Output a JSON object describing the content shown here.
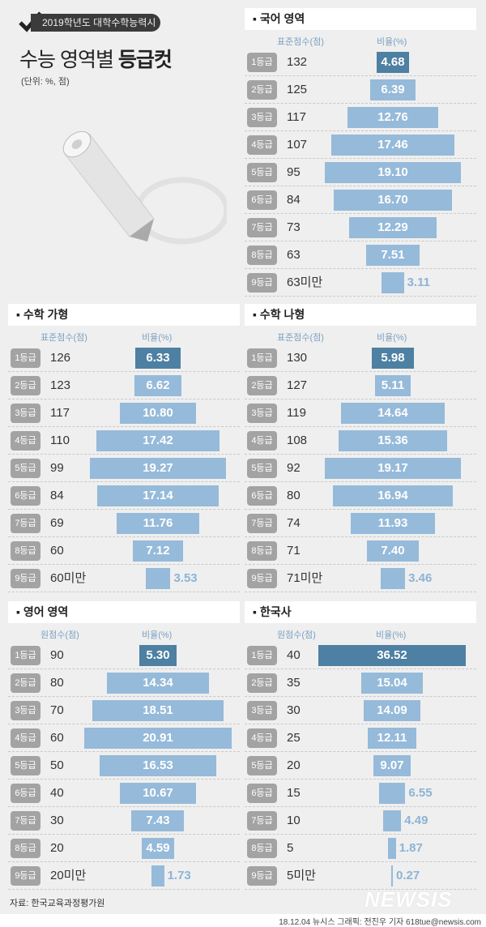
{
  "header": {
    "tag": "2019학년도 대학수학능력시험",
    "title_normal": "수능 영역별",
    "title_bold": "등급컷",
    "unit": "(단위: %, 점)"
  },
  "colors": {
    "grade1_bar": "#4d80a2",
    "bar": "#96bad9",
    "badge": "#a3a3a3",
    "background": "#efefef"
  },
  "footer": {
    "source": "자료: 한국교육과정평가원",
    "logo": "NEWSIS",
    "credit": "18.12.04 뉴시스 그래픽: 전진우 기자 618tue@newsis.com"
  },
  "chart_data": [
    {
      "type": "bar",
      "title": "▪ 국어 영역",
      "xlabel": "표준점수(점)",
      "ylabel": "비율(%)",
      "categories": [
        "1등급",
        "2등급",
        "3등급",
        "4등급",
        "5등급",
        "6등급",
        "7등급",
        "8등급",
        "9등급"
      ],
      "scores": [
        "132",
        "125",
        "117",
        "107",
        "95",
        "84",
        "73",
        "63",
        "63미만"
      ],
      "values": [
        4.68,
        6.39,
        12.76,
        17.46,
        19.1,
        16.7,
        12.29,
        7.51,
        3.11
      ],
      "labels": [
        "4.68",
        "6.39",
        "12.76",
        "17.46",
        "19.10",
        "16.70",
        "12.29",
        "7.51",
        "3.11"
      ]
    },
    {
      "type": "bar",
      "title": "▪ 수학 가형",
      "xlabel": "표준점수(점)",
      "ylabel": "비율(%)",
      "categories": [
        "1등급",
        "2등급",
        "3등급",
        "4등급",
        "5등급",
        "6등급",
        "7등급",
        "8등급",
        "9등급"
      ],
      "scores": [
        "126",
        "123",
        "117",
        "110",
        "99",
        "84",
        "69",
        "60",
        "60미만"
      ],
      "values": [
        6.33,
        6.62,
        10.8,
        17.42,
        19.27,
        17.14,
        11.76,
        7.12,
        3.53
      ],
      "labels": [
        "6.33",
        "6.62",
        "10.80",
        "17.42",
        "19.27",
        "17.14",
        "11.76",
        "7.12",
        "3.53"
      ]
    },
    {
      "type": "bar",
      "title": "▪ 수학 나형",
      "xlabel": "표준점수(점)",
      "ylabel": "비율(%)",
      "categories": [
        "1등급",
        "2등급",
        "3등급",
        "4등급",
        "5등급",
        "6등급",
        "7등급",
        "8등급",
        "9등급"
      ],
      "scores": [
        "130",
        "127",
        "119",
        "108",
        "92",
        "80",
        "74",
        "71",
        "71미만"
      ],
      "values": [
        5.98,
        5.11,
        14.64,
        15.36,
        19.17,
        16.94,
        11.93,
        7.4,
        3.46
      ],
      "labels": [
        "5.98",
        "5.11",
        "14.64",
        "15.36",
        "19.17",
        "16.94",
        "11.93",
        "7.40",
        "3.46"
      ]
    },
    {
      "type": "bar",
      "title": "▪ 영어 영역",
      "xlabel": "원점수(점)",
      "ylabel": "비율(%)",
      "categories": [
        "1등급",
        "2등급",
        "3등급",
        "4등급",
        "5등급",
        "6등급",
        "7등급",
        "8등급",
        "9등급"
      ],
      "scores": [
        "90",
        "80",
        "70",
        "60",
        "50",
        "40",
        "30",
        "20",
        "20미만"
      ],
      "values": [
        5.3,
        14.34,
        18.51,
        20.91,
        16.53,
        10.67,
        7.43,
        4.59,
        1.73
      ],
      "labels": [
        "5.30",
        "14.34",
        "18.51",
        "20.91",
        "16.53",
        "10.67",
        "7.43",
        "4.59",
        "1.73"
      ]
    },
    {
      "type": "bar",
      "title": "▪ 한국사",
      "xlabel": "원점수(점)",
      "ylabel": "비율(%)",
      "categories": [
        "1등급",
        "2등급",
        "3등급",
        "4등급",
        "5등급",
        "6등급",
        "7등급",
        "8등급",
        "9등급"
      ],
      "scores": [
        "40",
        "35",
        "30",
        "25",
        "20",
        "15",
        "10",
        "5",
        "5미만"
      ],
      "values": [
        36.52,
        15.04,
        14.09,
        12.11,
        9.07,
        6.55,
        4.49,
        1.87,
        0.27
      ],
      "labels": [
        "36.52",
        "15.04",
        "14.09",
        "12.11",
        "9.07",
        "6.55",
        "4.49",
        "1.87",
        "0.27"
      ]
    }
  ]
}
